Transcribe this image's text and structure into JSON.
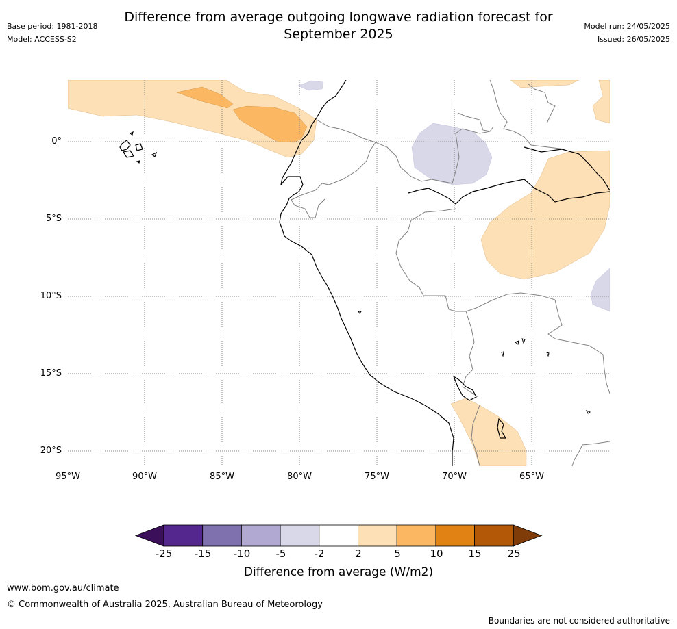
{
  "header": {
    "title_line1": "Difference from average outgoing longwave radiation forecast for",
    "title_line2": "September 2025",
    "base_period": "Base period: 1981-2018",
    "model": "Model: ACCESS-S2",
    "model_run": "Model run: 24/05/2025",
    "issued": "Issued: 26/05/2025"
  },
  "map": {
    "lat_labels": [
      "0°",
      "5°S",
      "10°S",
      "15°S",
      "20°S"
    ],
    "lon_labels": [
      "95°W",
      "90°W",
      "85°W",
      "80°W",
      "75°W",
      "70°W",
      "65°W"
    ]
  },
  "colorbar": {
    "title": "Difference from average (W/m2)",
    "ticks": [
      "-25",
      "-15",
      "-10",
      "-5",
      "-2",
      "2",
      "5",
      "10",
      "15",
      "25"
    ],
    "colors": [
      "#3b0f5a",
      "#54278f",
      "#7f71ad",
      "#b1a9d1",
      "#d9d8e9",
      "#ffffff",
      "#fde0b6",
      "#fbb761",
      "#e08214",
      "#b35806",
      "#7f3b08"
    ]
  },
  "footer": {
    "url": "www.bom.gov.au/climate",
    "copyright": "© Commonwealth of Australia 2025, Australian Bureau of Meteorology",
    "disclaimer": "Boundaries are not considered authoritative"
  }
}
